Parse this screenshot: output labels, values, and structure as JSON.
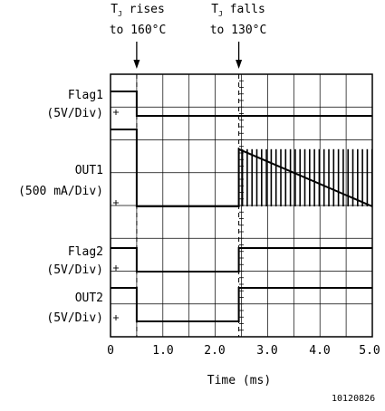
{
  "annotations": {
    "rise": {
      "line1_prefix": "T",
      "sub": "J",
      "line1_suffix": " rises",
      "line2": "to 160°C",
      "time_ms": 0.5
    },
    "fall": {
      "line1_prefix": "T",
      "sub": "J",
      "line1_suffix": " falls",
      "line2": "to 130°C",
      "time_ms": 2.45
    }
  },
  "trace_labels": [
    {
      "name": "Flag1",
      "scale": "(5V/Div)"
    },
    {
      "name": "OUT1",
      "scale": "(500 mA/Div)"
    },
    {
      "name": "Flag2",
      "scale": "(5V/Div)"
    },
    {
      "name": "OUT2",
      "scale": "(5V/Div)"
    }
  ],
  "figure_id": "10120826",
  "chart_data": {
    "type": "line",
    "xlabel": "Time (ms)",
    "xlim": [
      0,
      5.0
    ],
    "x_ticks": [
      "0",
      "1.0",
      "2.0",
      "3.0",
      "4.0",
      "5.0"
    ],
    "divisions": {
      "x": 10,
      "y": 8
    },
    "grid": true,
    "series": [
      {
        "name": "Flag1",
        "unit": "V",
        "points": [
          [
            0,
            5
          ],
          [
            0.5,
            5
          ],
          [
            0.5,
            0
          ],
          [
            5.0,
            0
          ]
        ]
      },
      {
        "name": "OUT1",
        "unit": "A",
        "points": [
          [
            0,
            1.95
          ],
          [
            0.5,
            1.95
          ],
          [
            0.5,
            0
          ],
          [
            2.45,
            0
          ],
          [
            2.45,
            1.45
          ],
          [
            5.0,
            1.45
          ]
        ],
        "pulsed_after_ms": 2.45
      },
      {
        "name": "Flag2",
        "unit": "V",
        "points": [
          [
            0,
            5
          ],
          [
            0.5,
            5
          ],
          [
            0.5,
            0
          ],
          [
            2.45,
            0
          ],
          [
            2.45,
            5
          ],
          [
            5.0,
            5
          ]
        ]
      },
      {
        "name": "OUT2",
        "unit": "V",
        "points": [
          [
            0,
            5
          ],
          [
            0.5,
            5
          ],
          [
            0.5,
            0
          ],
          [
            2.45,
            0
          ],
          [
            2.45,
            5
          ],
          [
            5.0,
            5
          ]
        ]
      }
    ]
  }
}
